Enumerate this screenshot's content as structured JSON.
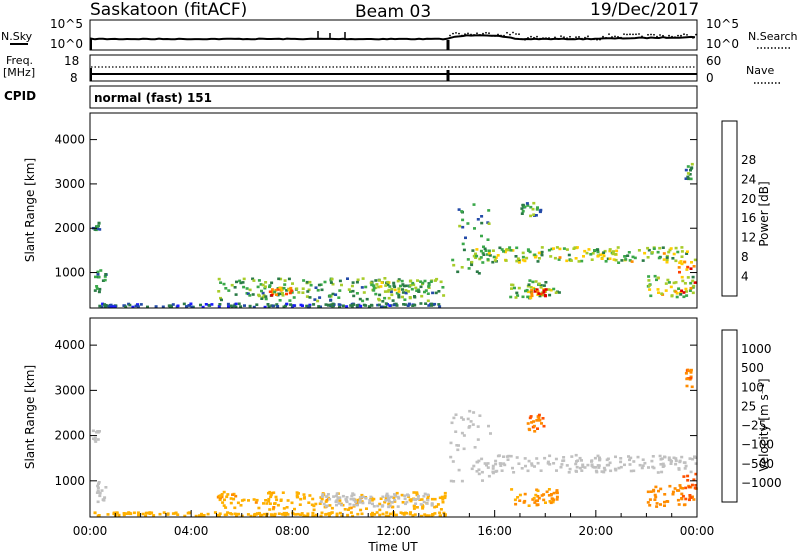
{
  "header": {
    "station": "Saskatoon (fitACF)",
    "beam": "Beam 03",
    "date": "19/Dec/2017"
  },
  "noise_panel": {
    "left_label": "N.Sky",
    "right_label": "N.Search",
    "left_ticks": [
      "10^5",
      "10^0"
    ],
    "right_ticks": [
      "10^5",
      "10^0"
    ]
  },
  "freq_panel": {
    "left_label_line1": "Freq.",
    "left_label_line2": "[MHz]",
    "right_label": "Nave",
    "left_ticks": [
      "18",
      "8"
    ],
    "right_ticks": [
      "60",
      "0"
    ]
  },
  "cpid": {
    "label": "CPID",
    "value": "normal (fast) 151"
  },
  "colors": {
    "power": [
      "#1a1aff",
      "#234aa8",
      "#2a7a46",
      "#3aa84a",
      "#a8cc2a",
      "#ffcc00",
      "#ff8c00",
      "#ff4000",
      "#e00000"
    ],
    "velocity": [
      "#2040c0",
      "#2a60a8",
      "#2a8060",
      "#50b040",
      "#c0c0c0",
      "#ffb000",
      "#ff8c00",
      "#ff5000",
      "#e00000"
    ]
  },
  "chart_data": [
    {
      "type": "heatmap",
      "panel": "power",
      "ylabel": "Slant Range [km]",
      "y_ticks": [
        "1000",
        "2000",
        "3000",
        "4000"
      ],
      "ylim": [
        200,
        4600
      ],
      "colorbar_label": "Power [dB]",
      "colorbar_ticks": [
        "4",
        "8",
        "12",
        "16",
        "20",
        "24",
        "28"
      ],
      "colorbar_range": [
        0,
        32
      ],
      "x_range_hours": [
        0,
        24
      ],
      "regions": [
        {
          "t": [
            0.0,
            0.35
          ],
          "r": [
            1850,
            2150
          ],
          "v": 9
        },
        {
          "t": [
            0.15,
            0.6
          ],
          "r": [
            550,
            1100
          ],
          "v": 10
        },
        {
          "t": [
            0.0,
            14.0
          ],
          "r": [
            200,
            330
          ],
          "v": 7
        },
        {
          "t": [
            5.0,
            14.0
          ],
          "r": [
            380,
            900
          ],
          "v": 13
        },
        {
          "t": [
            7.0,
            8.0
          ],
          "r": [
            500,
            700
          ],
          "v": 22
        },
        {
          "t": [
            11.0,
            13.5
          ],
          "r": [
            600,
            850
          ],
          "v": 15
        },
        {
          "t": [
            14.2,
            15.8
          ],
          "r": [
            1000,
            2600
          ],
          "v": 12
        },
        {
          "t": [
            15.0,
            24.0
          ],
          "r": [
            1250,
            1600
          ],
          "v": 17
        },
        {
          "t": [
            16.5,
            18.5
          ],
          "r": [
            450,
            850
          ],
          "v": 16
        },
        {
          "t": [
            17.4,
            18.0
          ],
          "r": [
            500,
            650
          ],
          "v": 27
        },
        {
          "t": [
            17.0,
            17.8
          ],
          "r": [
            2300,
            2600
          ],
          "v": 12
        },
        {
          "t": [
            22.0,
            24.0
          ],
          "r": [
            450,
            950
          ],
          "v": 18
        },
        {
          "t": [
            23.2,
            24.0
          ],
          "r": [
            550,
            1300
          ],
          "v": 26
        },
        {
          "t": [
            23.5,
            23.8
          ],
          "r": [
            3100,
            3500
          ],
          "v": 12
        }
      ]
    },
    {
      "type": "heatmap",
      "panel": "velocity",
      "xlabel": "Time UT",
      "x_ticks": [
        "00:00",
        "04:00",
        "08:00",
        "12:00",
        "16:00",
        "20:00",
        "00:00"
      ],
      "ylabel": "Slant Range [km]",
      "y_ticks": [
        "1000",
        "2000",
        "3000",
        "4000"
      ],
      "ylim": [
        200,
        4600
      ],
      "colorbar_label": "Velocity [m s⁻¹]",
      "colorbar_ticks": [
        "1000",
        "500",
        "100",
        "25",
        "−25",
        "−100",
        "−500",
        "−1000"
      ],
      "x_range_hours": [
        0,
        24
      ],
      "regions": [
        {
          "t": [
            0.0,
            0.35
          ],
          "r": [
            1850,
            2150
          ],
          "v": 0
        },
        {
          "t": [
            0.15,
            0.6
          ],
          "r": [
            550,
            1000
          ],
          "v": 0
        },
        {
          "t": [
            0.0,
            14.0
          ],
          "r": [
            200,
            330
          ],
          "v": -60
        },
        {
          "t": [
            5.0,
            14.0
          ],
          "r": [
            380,
            780
          ],
          "v": -80
        },
        {
          "t": [
            9.0,
            13.5
          ],
          "r": [
            450,
            750
          ],
          "v": 0
        },
        {
          "t": [
            14.2,
            15.8
          ],
          "r": [
            1000,
            2600
          ],
          "v": 0
        },
        {
          "t": [
            15.0,
            24.0
          ],
          "r": [
            1200,
            1600
          ],
          "v": 0
        },
        {
          "t": [
            16.5,
            18.5
          ],
          "r": [
            450,
            850
          ],
          "v": -120
        },
        {
          "t": [
            17.2,
            17.9
          ],
          "r": [
            2100,
            2500
          ],
          "v": -450
        },
        {
          "t": [
            22.0,
            24.0
          ],
          "r": [
            450,
            950
          ],
          "v": -150
        },
        {
          "t": [
            23.4,
            24.0
          ],
          "r": [
            600,
            1200
          ],
          "v": -600
        },
        {
          "t": [
            23.5,
            23.8
          ],
          "r": [
            3100,
            3500
          ],
          "v": -500
        }
      ]
    }
  ]
}
